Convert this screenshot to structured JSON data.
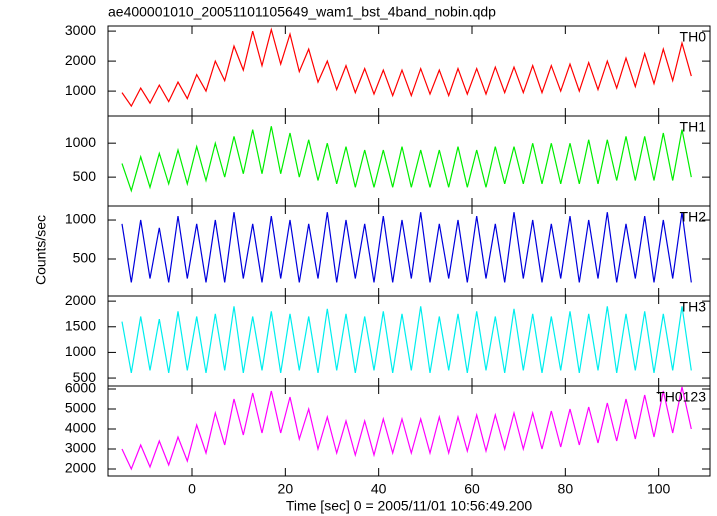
{
  "chart_data": {
    "type": "line",
    "title": "ae400001010_20051101105649_wam1_bst_4band_nobin.qdp",
    "xlabel": "Time [sec] 0 = 2005/11/01 10:56:49.200",
    "ylabel": "Counts/sec",
    "xlim": [
      -18,
      111
    ],
    "xticks": [
      0,
      20,
      40,
      60,
      80,
      100
    ],
    "x": [
      -15,
      -13,
      -11,
      -9,
      -7,
      -5,
      -3,
      -1,
      1,
      3,
      5,
      7,
      9,
      11,
      13,
      15,
      17,
      19,
      21,
      23,
      25,
      27,
      29,
      31,
      33,
      35,
      37,
      39,
      41,
      43,
      45,
      47,
      49,
      51,
      53,
      55,
      57,
      59,
      61,
      63,
      65,
      67,
      69,
      71,
      73,
      75,
      77,
      79,
      81,
      83,
      85,
      87,
      89,
      91,
      93,
      95,
      97,
      99,
      101,
      103,
      105,
      107
    ],
    "panels": [
      {
        "label": "TH0",
        "color": "#ff0000",
        "ylim": [
          170,
          3170
        ],
        "yticks": [
          1000,
          2000,
          3000
        ],
        "values": [
          950,
          500,
          1100,
          600,
          1200,
          650,
          1300,
          750,
          1550,
          1000,
          2000,
          1350,
          2500,
          1700,
          3000,
          1850,
          3050,
          1900,
          2900,
          1650,
          2400,
          1300,
          2000,
          1050,
          1850,
          950,
          1750,
          900,
          1700,
          850,
          1700,
          850,
          1750,
          900,
          1700,
          850,
          1750,
          900,
          1750,
          900,
          1800,
          950,
          1800,
          950,
          1850,
          950,
          1850,
          1000,
          1900,
          1000,
          1950,
          1050,
          2000,
          1100,
          2100,
          1150,
          2250,
          1250,
          2400,
          1350,
          2600,
          1500
        ]
      },
      {
        "label": "TH1",
        "color": "#00ee00",
        "ylim": [
          75,
          1400
        ],
        "yticks": [
          500,
          1000
        ],
        "values": [
          700,
          300,
          800,
          350,
          850,
          400,
          900,
          400,
          950,
          450,
          1000,
          500,
          1100,
          550,
          1200,
          550,
          1250,
          550,
          1150,
          500,
          1050,
          450,
          1000,
          400,
          950,
          350,
          900,
          350,
          900,
          350,
          950,
          350,
          900,
          350,
          900,
          350,
          950,
          350,
          900,
          350,
          950,
          400,
          950,
          400,
          1000,
          400,
          1000,
          400,
          1000,
          400,
          1050,
          400,
          1050,
          450,
          1100,
          450,
          1100,
          450,
          1150,
          450,
          1200,
          500
        ]
      },
      {
        "label": "TH2",
        "color": "#0000dd",
        "ylim": [
          25,
          1180
        ],
        "yticks": [
          500,
          1000
        ],
        "values": [
          950,
          200,
          1000,
          250,
          900,
          200,
          1050,
          250,
          950,
          200,
          1000,
          200,
          1100,
          250,
          950,
          200,
          1050,
          250,
          1000,
          200,
          950,
          250,
          1100,
          200,
          1000,
          250,
          950,
          200,
          1050,
          200,
          1000,
          250,
          1100,
          200,
          950,
          250,
          1000,
          200,
          1050,
          250,
          950,
          200,
          1100,
          250,
          1000,
          200,
          950,
          250,
          1050,
          200,
          1000,
          250,
          1100,
          200,
          950,
          250,
          1050,
          200,
          1000,
          250,
          1100,
          200
        ]
      },
      {
        "label": "TH3",
        "color": "#00eeee",
        "ylim": [
          345,
          2100
        ],
        "yticks": [
          500,
          1000,
          1500,
          2000
        ],
        "values": [
          1600,
          600,
          1700,
          650,
          1650,
          600,
          1800,
          650,
          1700,
          600,
          1750,
          650,
          1900,
          600,
          1700,
          650,
          1800,
          600,
          1750,
          650,
          1700,
          600,
          1850,
          650,
          1750,
          600,
          1700,
          650,
          1800,
          600,
          1750,
          650,
          1900,
          600,
          1700,
          650,
          1750,
          600,
          1800,
          650,
          1700,
          600,
          1850,
          650,
          1750,
          600,
          1700,
          650,
          1800,
          600,
          1750,
          650,
          1900,
          600,
          1750,
          650,
          1800,
          600,
          1750,
          650,
          1900,
          650
        ]
      },
      {
        "label": "TH0123",
        "color": "#ff00ff",
        "ylim": [
          1650,
          6150
        ],
        "yticks": [
          2000,
          3000,
          4000,
          5000,
          6000
        ],
        "values": [
          3000,
          2000,
          3200,
          2100,
          3400,
          2200,
          3600,
          2400,
          4200,
          2800,
          4800,
          3200,
          5500,
          3700,
          5800,
          3800,
          5900,
          3800,
          5600,
          3500,
          5000,
          3000,
          4600,
          2800,
          4400,
          2700,
          4400,
          2700,
          4500,
          2800,
          4500,
          2800,
          4500,
          2800,
          4600,
          2800,
          4600,
          2900,
          4700,
          2900,
          4700,
          3000,
          4800,
          3000,
          4800,
          3000,
          4900,
          3100,
          5000,
          3200,
          5100,
          3300,
          5300,
          3400,
          5500,
          3500,
          5700,
          3600,
          5900,
          3800,
          6100,
          4000
        ]
      }
    ]
  }
}
